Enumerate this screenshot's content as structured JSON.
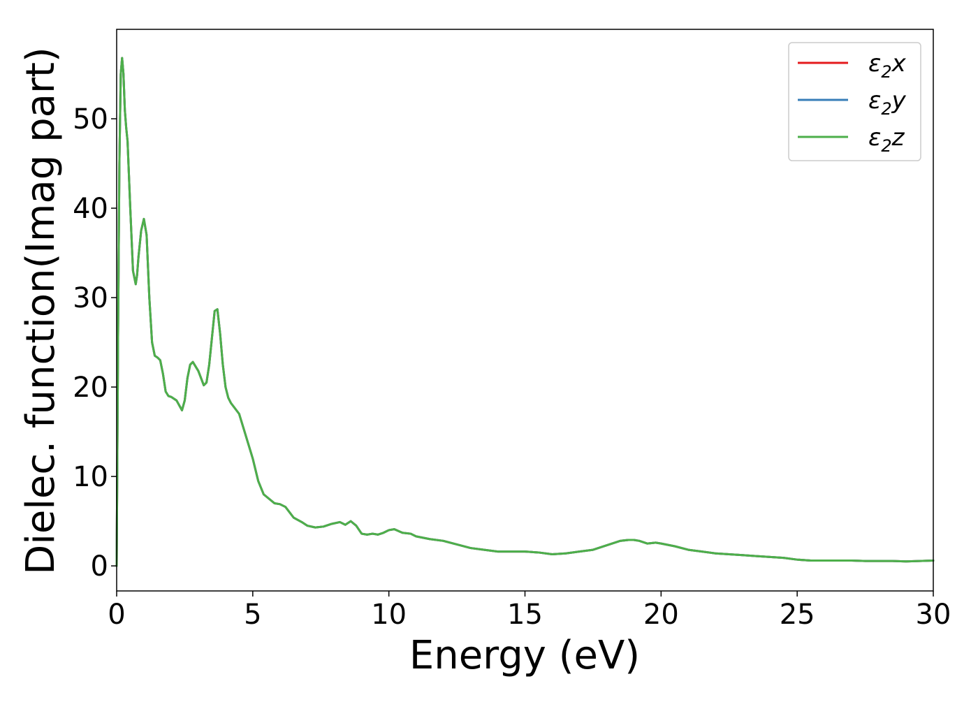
{
  "chart_data": {
    "type": "line",
    "xlabel": "Energy (eV)",
    "ylabel": "Dielec. function(Imag part)",
    "xlim": [
      0,
      30
    ],
    "ylim": [
      -2.8,
      60
    ],
    "xticks": [
      0,
      5,
      10,
      15,
      20,
      25,
      30
    ],
    "yticks": [
      0,
      10,
      20,
      30,
      40,
      50
    ],
    "grid": false,
    "legend_position": "top-right",
    "legend": [
      {
        "base": "ε",
        "sub": "2",
        "suffix": "x",
        "color": "#e41a1c"
      },
      {
        "base": "ε",
        "sub": "2",
        "suffix": "y",
        "color": "#377eb8"
      },
      {
        "base": "ε",
        "sub": "2",
        "suffix": "z",
        "color": "#4daf4a"
      }
    ],
    "x": [
      0.0,
      0.05,
      0.1,
      0.15,
      0.2,
      0.25,
      0.3,
      0.35,
      0.4,
      0.5,
      0.6,
      0.7,
      0.75,
      0.8,
      0.9,
      1.0,
      1.1,
      1.2,
      1.3,
      1.4,
      1.5,
      1.6,
      1.7,
      1.8,
      1.9,
      2.0,
      2.2,
      2.4,
      2.5,
      2.6,
      2.7,
      2.8,
      2.9,
      3.0,
      3.1,
      3.2,
      3.3,
      3.4,
      3.5,
      3.6,
      3.7,
      3.8,
      3.9,
      4.0,
      4.1,
      4.2,
      4.3,
      4.5,
      4.7,
      4.9,
      5.0,
      5.2,
      5.4,
      5.6,
      5.8,
      6.0,
      6.2,
      6.5,
      6.8,
      7.0,
      7.3,
      7.6,
      7.9,
      8.2,
      8.4,
      8.6,
      8.8,
      9.0,
      9.2,
      9.4,
      9.6,
      9.8,
      10.0,
      10.2,
      10.5,
      10.8,
      11.0,
      11.5,
      12.0,
      12.5,
      13.0,
      13.5,
      14.0,
      14.5,
      15.0,
      15.5,
      16.0,
      16.5,
      17.0,
      17.5,
      18.0,
      18.5,
      18.8,
      19.0,
      19.2,
      19.5,
      19.8,
      20.0,
      20.5,
      21.0,
      21.5,
      22.0,
      22.5,
      23.0,
      23.5,
      24.0,
      24.5,
      25.0,
      25.5,
      26.0,
      26.5,
      27.0,
      27.5,
      28.0,
      28.5,
      29.0,
      29.5,
      30.0
    ],
    "series": [
      {
        "name": "ε₂x",
        "color": "#e41a1c",
        "values": [
          0.0,
          25.0,
          45.0,
          55.0,
          56.8,
          55.0,
          51.0,
          49.0,
          47.5,
          40.0,
          33.0,
          31.5,
          32.5,
          34.5,
          37.5,
          38.8,
          37.0,
          30.0,
          25.0,
          23.5,
          23.3,
          23.0,
          21.5,
          19.5,
          19.0,
          18.9,
          18.5,
          17.4,
          18.5,
          21.0,
          22.5,
          22.8,
          22.3,
          21.8,
          21.0,
          20.2,
          20.5,
          22.5,
          25.5,
          28.5,
          28.7,
          26.0,
          22.5,
          20.0,
          18.8,
          18.2,
          17.8,
          17.0,
          15.0,
          13.0,
          12.0,
          9.5,
          8.0,
          7.5,
          7.0,
          6.9,
          6.6,
          5.4,
          4.9,
          4.5,
          4.3,
          4.4,
          4.7,
          4.9,
          4.6,
          5.0,
          4.5,
          3.6,
          3.5,
          3.6,
          3.5,
          3.7,
          4.0,
          4.1,
          3.7,
          3.6,
          3.3,
          3.0,
          2.8,
          2.4,
          2.0,
          1.8,
          1.6,
          1.6,
          1.6,
          1.5,
          1.3,
          1.4,
          1.6,
          1.8,
          2.3,
          2.8,
          2.9,
          2.9,
          2.8,
          2.5,
          2.6,
          2.5,
          2.2,
          1.8,
          1.6,
          1.4,
          1.3,
          1.2,
          1.1,
          1.0,
          0.9,
          0.7,
          0.6,
          0.6,
          0.6,
          0.6,
          0.55,
          0.55,
          0.55,
          0.5,
          0.55,
          0.6
        ]
      },
      {
        "name": "ε₂y",
        "color": "#377eb8",
        "values": [
          0.0,
          25.0,
          45.0,
          55.0,
          56.8,
          55.0,
          51.0,
          49.0,
          47.5,
          40.0,
          33.0,
          31.5,
          32.5,
          34.5,
          37.5,
          38.8,
          37.0,
          30.0,
          25.0,
          23.5,
          23.3,
          23.0,
          21.5,
          19.5,
          19.0,
          18.9,
          18.5,
          17.4,
          18.5,
          21.0,
          22.5,
          22.8,
          22.3,
          21.8,
          21.0,
          20.2,
          20.5,
          22.5,
          25.5,
          28.5,
          28.7,
          26.0,
          22.5,
          20.0,
          18.8,
          18.2,
          17.8,
          17.0,
          15.0,
          13.0,
          12.0,
          9.5,
          8.0,
          7.5,
          7.0,
          6.9,
          6.6,
          5.4,
          4.9,
          4.5,
          4.3,
          4.4,
          4.7,
          4.9,
          4.6,
          5.0,
          4.5,
          3.6,
          3.5,
          3.6,
          3.5,
          3.7,
          4.0,
          4.1,
          3.7,
          3.6,
          3.3,
          3.0,
          2.8,
          2.4,
          2.0,
          1.8,
          1.6,
          1.6,
          1.6,
          1.5,
          1.3,
          1.4,
          1.6,
          1.8,
          2.3,
          2.8,
          2.9,
          2.9,
          2.8,
          2.5,
          2.6,
          2.5,
          2.2,
          1.8,
          1.6,
          1.4,
          1.3,
          1.2,
          1.1,
          1.0,
          0.9,
          0.7,
          0.6,
          0.6,
          0.6,
          0.6,
          0.55,
          0.55,
          0.55,
          0.5,
          0.55,
          0.6
        ]
      },
      {
        "name": "ε₂z",
        "color": "#4daf4a",
        "values": [
          0.0,
          25.0,
          45.0,
          55.0,
          56.8,
          55.0,
          51.0,
          49.0,
          47.5,
          40.0,
          33.0,
          31.5,
          32.5,
          34.5,
          37.5,
          38.8,
          37.0,
          30.0,
          25.0,
          23.5,
          23.3,
          23.0,
          21.5,
          19.5,
          19.0,
          18.9,
          18.5,
          17.4,
          18.5,
          21.0,
          22.5,
          22.8,
          22.3,
          21.8,
          21.0,
          20.2,
          20.5,
          22.5,
          25.5,
          28.5,
          28.7,
          26.0,
          22.5,
          20.0,
          18.8,
          18.2,
          17.8,
          17.0,
          15.0,
          13.0,
          12.0,
          9.5,
          8.0,
          7.5,
          7.0,
          6.9,
          6.6,
          5.4,
          4.9,
          4.5,
          4.3,
          4.4,
          4.7,
          4.9,
          4.6,
          5.0,
          4.5,
          3.6,
          3.5,
          3.6,
          3.5,
          3.7,
          4.0,
          4.1,
          3.7,
          3.6,
          3.3,
          3.0,
          2.8,
          2.4,
          2.0,
          1.8,
          1.6,
          1.6,
          1.6,
          1.5,
          1.3,
          1.4,
          1.6,
          1.8,
          2.3,
          2.8,
          2.9,
          2.9,
          2.8,
          2.5,
          2.6,
          2.5,
          2.2,
          1.8,
          1.6,
          1.4,
          1.3,
          1.2,
          1.1,
          1.0,
          0.9,
          0.7,
          0.6,
          0.6,
          0.6,
          0.6,
          0.55,
          0.55,
          0.55,
          0.5,
          0.55,
          0.6
        ]
      }
    ]
  }
}
